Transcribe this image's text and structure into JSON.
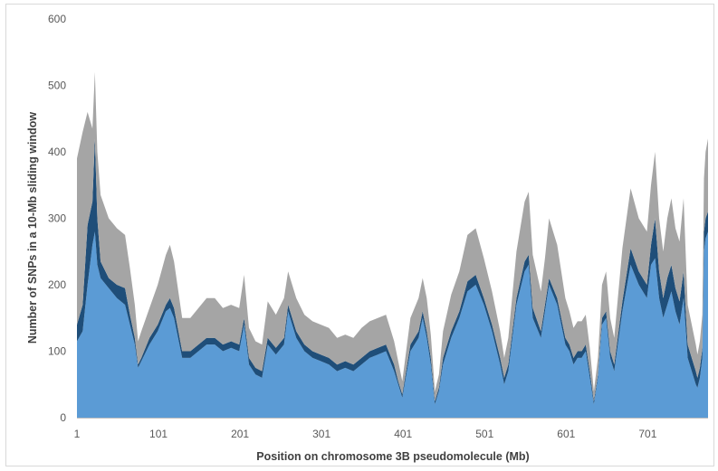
{
  "chart_data": {
    "type": "area",
    "title": "",
    "xlabel": "Position on chromosome 3B pseudomolecule (Mb)",
    "ylabel": "Number of SNPs in a 10-Mb sliding window",
    "ylim": [
      0,
      600
    ],
    "xlim": [
      1,
      775
    ],
    "y_ticks": [
      "0",
      "100",
      "200",
      "300",
      "400",
      "500",
      "600"
    ],
    "x_ticks": [
      {
        "label": "1",
        "value": 1
      },
      {
        "label": "101",
        "value": 101
      },
      {
        "label": "201",
        "value": 201
      },
      {
        "label": "301",
        "value": 301
      },
      {
        "label": "401",
        "value": 401
      },
      {
        "label": "501",
        "value": 501
      },
      {
        "label": "601",
        "value": 601
      },
      {
        "label": "701",
        "value": 701
      }
    ],
    "grid": false,
    "stacked": true,
    "colors": {
      "bottom": "#5b9bd5",
      "middle": "#1f4e79",
      "top": "#a5a5a5"
    },
    "x": [
      1,
      8,
      14,
      20,
      23,
      26,
      30,
      40,
      50,
      60,
      66,
      72,
      76,
      80,
      90,
      100,
      110,
      115,
      120,
      130,
      140,
      150,
      160,
      170,
      180,
      190,
      200,
      206,
      212,
      220,
      228,
      235,
      245,
      255,
      260,
      270,
      280,
      290,
      300,
      310,
      320,
      330,
      340,
      350,
      360,
      370,
      380,
      385,
      390,
      395,
      400,
      410,
      420,
      425,
      430,
      435,
      440,
      445,
      450,
      460,
      470,
      480,
      490,
      500,
      510,
      520,
      525,
      530,
      540,
      550,
      555,
      560,
      570,
      575,
      580,
      590,
      600,
      605,
      610,
      615,
      620,
      625,
      630,
      635,
      640,
      645,
      650,
      655,
      660,
      670,
      680,
      690,
      700,
      705,
      710,
      715,
      720,
      725,
      730,
      735,
      740,
      745,
      750,
      755,
      760,
      762,
      765,
      768,
      770,
      772,
      775
    ],
    "series": [
      {
        "values": [
          115,
          130,
          200,
          260,
          280,
          230,
          210,
          195,
          180,
          170,
          140,
          110,
          75,
          85,
          110,
          130,
          160,
          165,
          150,
          90,
          90,
          100,
          110,
          110,
          100,
          105,
          100,
          140,
          80,
          65,
          60,
          110,
          95,
          110,
          160,
          120,
          100,
          90,
          85,
          80,
          70,
          75,
          70,
          80,
          90,
          95,
          100,
          85,
          70,
          50,
          30,
          100,
          120,
          150,
          120,
          80,
          20,
          40,
          80,
          120,
          150,
          190,
          200,
          170,
          130,
          80,
          50,
          70,
          170,
          220,
          230,
          150,
          120,
          160,
          200,
          170,
          110,
          100,
          80,
          90,
          90,
          100,
          60,
          20,
          60,
          140,
          150,
          90,
          70,
          160,
          230,
          200,
          180,
          230,
          240,
          180,
          150,
          170,
          190,
          160,
          140,
          180,
          90,
          70,
          50,
          45,
          60,
          90,
          250,
          270,
          280
        ]
      },
      {
        "values": [
          25,
          40,
          90,
          65,
          140,
          70,
          25,
          15,
          20,
          25,
          15,
          10,
          5,
          5,
          10,
          10,
          10,
          15,
          15,
          10,
          10,
          10,
          10,
          10,
          10,
          10,
          10,
          10,
          10,
          10,
          10,
          10,
          10,
          10,
          10,
          10,
          10,
          10,
          10,
          10,
          10,
          10,
          10,
          10,
          10,
          10,
          10,
          10,
          10,
          5,
          5,
          10,
          10,
          10,
          10,
          10,
          5,
          5,
          10,
          10,
          10,
          15,
          15,
          10,
          10,
          10,
          10,
          10,
          10,
          15,
          15,
          15,
          10,
          10,
          10,
          10,
          10,
          10,
          10,
          10,
          10,
          10,
          10,
          5,
          5,
          10,
          10,
          10,
          10,
          15,
          25,
          20,
          20,
          30,
          60,
          40,
          30,
          40,
          40,
          35,
          35,
          40,
          20,
          20,
          20,
          15,
          15,
          15,
          30,
          30,
          30
        ]
      },
      {
        "values": [
          250,
          260,
          170,
          110,
          100,
          100,
          100,
          90,
          85,
          80,
          70,
          50,
          35,
          40,
          45,
          60,
          75,
          80,
          70,
          50,
          50,
          55,
          60,
          60,
          55,
          55,
          55,
          65,
          45,
          40,
          40,
          55,
          50,
          60,
          50,
          50,
          45,
          45,
          45,
          45,
          40,
          40,
          40,
          45,
          45,
          45,
          45,
          40,
          35,
          30,
          20,
          40,
          50,
          50,
          50,
          35,
          15,
          20,
          40,
          55,
          60,
          70,
          70,
          60,
          50,
          40,
          30,
          40,
          70,
          90,
          95,
          80,
          60,
          70,
          90,
          80,
          60,
          50,
          45,
          45,
          45,
          45,
          35,
          15,
          25,
          50,
          60,
          50,
          40,
          80,
          90,
          80,
          80,
          90,
          100,
          80,
          70,
          90,
          100,
          90,
          90,
          110,
          60,
          50,
          40,
          35,
          40,
          50,
          80,
          100,
          110
        ]
      }
    ]
  }
}
